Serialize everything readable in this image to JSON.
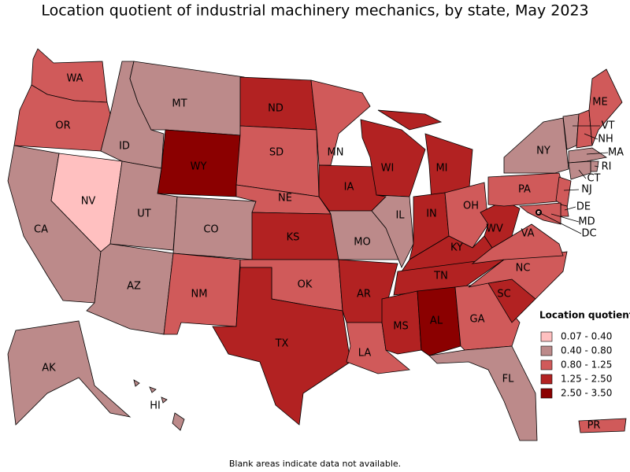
{
  "title": "Location quotient of industrial machinery mechanics, by state, May 2023",
  "note": "Blank areas indicate data not available.",
  "legend": {
    "title": "Location quotient",
    "bins": [
      {
        "label": "0.07 - 0.40",
        "color": "#ffc0c0"
      },
      {
        "label": "0.40 - 0.80",
        "color": "#bc8a8a"
      },
      {
        "label": "0.80 - 1.25",
        "color": "#d05a5a"
      },
      {
        "label": "1.25 - 2.50",
        "color": "#b22222"
      },
      {
        "label": "2.50 - 3.50",
        "color": "#8b0000"
      }
    ]
  },
  "states": [
    {
      "label": "WA",
      "color": "#d05a5a"
    },
    {
      "label": "OR",
      "color": "#d05a5a"
    },
    {
      "label": "CA",
      "color": "#bc8a8a"
    },
    {
      "label": "NV",
      "color": "#ffc0c0"
    },
    {
      "label": "ID",
      "color": "#bc8a8a"
    },
    {
      "label": "MT",
      "color": "#bc8a8a"
    },
    {
      "label": "WY",
      "color": "#8b0000"
    },
    {
      "label": "UT",
      "color": "#bc8a8a"
    },
    {
      "label": "CO",
      "color": "#bc8a8a"
    },
    {
      "label": "AZ",
      "color": "#bc8a8a"
    },
    {
      "label": "NM",
      "color": "#d05a5a"
    },
    {
      "label": "ND",
      "color": "#b22222"
    },
    {
      "label": "SD",
      "color": "#d05a5a"
    },
    {
      "label": "NE",
      "color": "#d05a5a"
    },
    {
      "label": "KS",
      "color": "#b22222"
    },
    {
      "label": "OK",
      "color": "#d05a5a"
    },
    {
      "label": "TX",
      "color": "#b22222"
    },
    {
      "label": "MN",
      "color": "#d05a5a"
    },
    {
      "label": "IA",
      "color": "#b22222"
    },
    {
      "label": "MO",
      "color": "#bc8a8a"
    },
    {
      "label": "AR",
      "color": "#b22222"
    },
    {
      "label": "LA",
      "color": "#d05a5a"
    },
    {
      "label": "WI",
      "color": "#b22222"
    },
    {
      "label": "IL",
      "color": "#bc8a8a"
    },
    {
      "label": "MI",
      "color": "#b22222"
    },
    {
      "label": "IN",
      "color": "#b22222"
    },
    {
      "label": "OH",
      "color": "#d05a5a"
    },
    {
      "label": "KY",
      "color": "#b22222"
    },
    {
      "label": "TN",
      "color": "#b22222"
    },
    {
      "label": "MS",
      "color": "#b22222"
    },
    {
      "label": "AL",
      "color": "#8b0000"
    },
    {
      "label": "GA",
      "color": "#d05a5a"
    },
    {
      "label": "FL",
      "color": "#bc8a8a"
    },
    {
      "label": "SC",
      "color": "#b22222"
    },
    {
      "label": "NC",
      "color": "#d05a5a"
    },
    {
      "label": "VA",
      "color": "#d05a5a"
    },
    {
      "label": "WV",
      "color": "#b22222"
    },
    {
      "label": "PA",
      "color": "#d05a5a"
    },
    {
      "label": "NY",
      "color": "#bc8a8a"
    },
    {
      "label": "VT",
      "color": "#bc8a8a"
    },
    {
      "label": "NH",
      "color": "#d05a5a"
    },
    {
      "label": "ME",
      "color": "#d05a5a"
    },
    {
      "label": "MA",
      "color": "#bc8a8a"
    },
    {
      "label": "RI",
      "color": "#bc8a8a"
    },
    {
      "label": "CT",
      "color": "#bc8a8a"
    },
    {
      "label": "NJ",
      "color": "#d05a5a"
    },
    {
      "label": "DE",
      "color": "#d05a5a"
    },
    {
      "label": "MD",
      "color": "#d05a5a"
    },
    {
      "label": "DC",
      "color": "#ffc0c0"
    },
    {
      "label": "AK",
      "color": "#bc8a8a"
    },
    {
      "label": "HI",
      "color": "#bc8a8a"
    },
    {
      "label": "PR",
      "color": "#d05a5a"
    }
  ]
}
